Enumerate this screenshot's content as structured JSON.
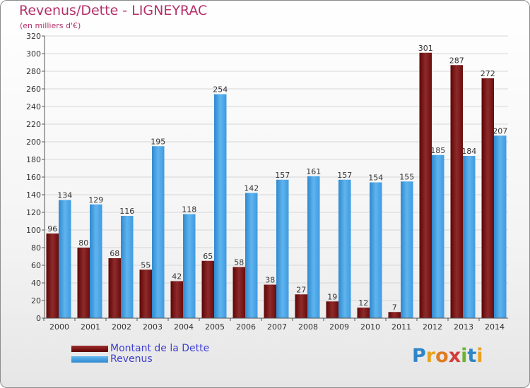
{
  "chart_data": {
    "type": "bar",
    "title": "Revenus/Dette - LIGNEYRAC",
    "subtitle": "(en milliers d'€)",
    "categories": [
      "2000",
      "2001",
      "2002",
      "2003",
      "2004",
      "2005",
      "2006",
      "2007",
      "2008",
      "2009",
      "2010",
      "2011",
      "2012",
      "2013",
      "2014"
    ],
    "series": [
      {
        "name": "Montant de la Dette",
        "values": [
          96,
          80,
          68,
          55,
          42,
          65,
          58,
          38,
          27,
          19,
          12,
          7,
          301,
          287,
          272
        ]
      },
      {
        "name": "Revenus",
        "values": [
          134,
          129,
          116,
          195,
          118,
          254,
          142,
          157,
          161,
          157,
          154,
          155,
          185,
          184,
          207
        ]
      }
    ],
    "ylim": [
      0,
      320
    ],
    "ytick_step": 20,
    "grid": true,
    "legend_position": "bottom-left",
    "colors": {
      "debt": "#7a1a1a",
      "revenue": "#4aa3e6",
      "title": "#b4306a",
      "legend_text": "#4040d0"
    }
  },
  "branding": {
    "logo_text": "Proxiti"
  }
}
